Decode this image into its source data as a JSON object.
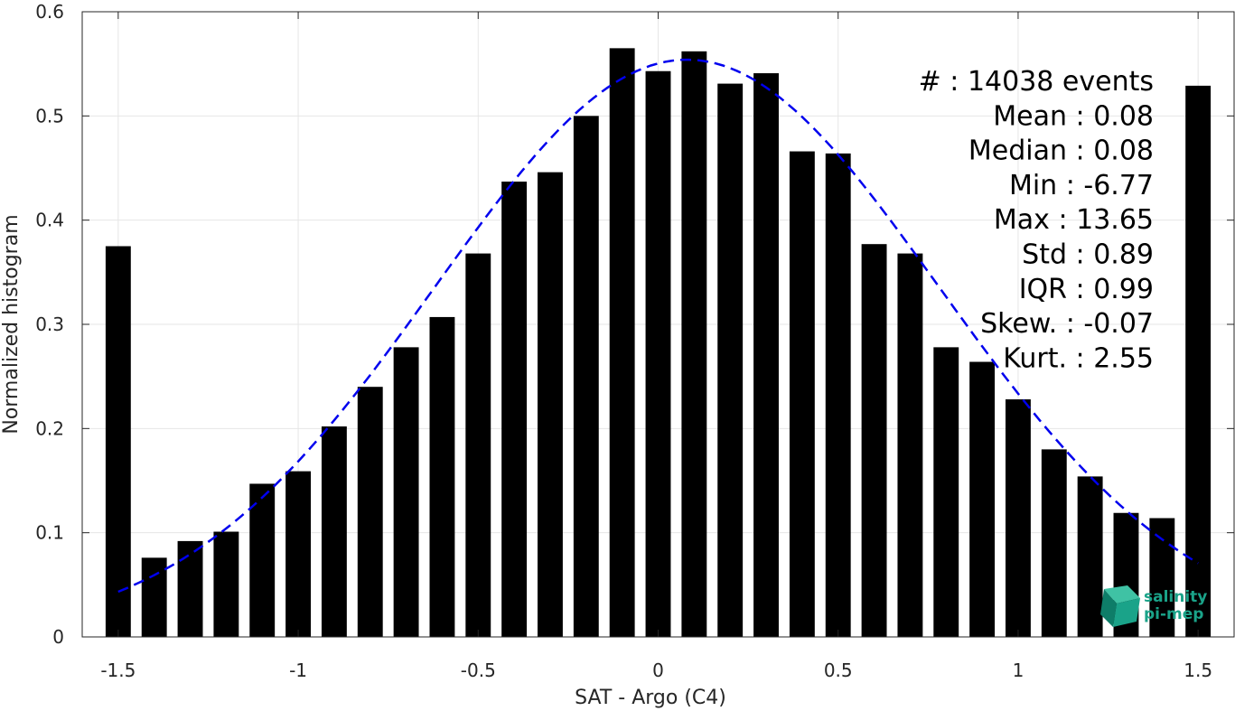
{
  "chart_data": {
    "type": "bar",
    "xlabel": "SAT - Argo (C4)",
    "ylabel": "Normalized histogram",
    "xlim": [
      -1.6,
      1.6
    ],
    "ylim": [
      0,
      0.6
    ],
    "grid": true,
    "xticks": [
      -1.5,
      -1,
      -0.5,
      0,
      0.5,
      1,
      1.5
    ],
    "xtick_labels": [
      "-1.5",
      "-1",
      "-0.5",
      "0",
      "0.5",
      "1",
      "1.5"
    ],
    "yticks": [
      0,
      0.1,
      0.2,
      0.3,
      0.4,
      0.5,
      0.6
    ],
    "ytick_labels": [
      "0",
      "0.1",
      "0.2",
      "0.3",
      "0.4",
      "0.5",
      "0.6"
    ],
    "bar_color": "#000000",
    "series": [
      {
        "x": [
          -1.5,
          -1.4,
          -1.3,
          -1.2,
          -1.1,
          -1.0,
          -0.9,
          -0.8,
          -0.7,
          -0.6,
          -0.5,
          -0.4,
          -0.3,
          -0.2,
          -0.1,
          0.0,
          0.1,
          0.2,
          0.3,
          0.4,
          0.5,
          0.6,
          0.7,
          0.8,
          0.9,
          1.0,
          1.1,
          1.2,
          1.3,
          1.4,
          1.5
        ],
        "values": [
          0.375,
          0.076,
          0.092,
          0.101,
          0.147,
          0.159,
          0.202,
          0.24,
          0.278,
          0.307,
          0.368,
          0.437,
          0.446,
          0.5,
          0.565,
          0.543,
          0.562,
          0.531,
          0.541,
          0.466,
          0.464,
          0.377,
          0.368,
          0.278,
          0.264,
          0.228,
          0.18,
          0.154,
          0.119,
          0.114,
          0.529
        ]
      }
    ],
    "fit_curve": {
      "type": "gaussian",
      "style": "dashed",
      "color": "#0000ee",
      "x_range": [
        -1.5,
        1.5
      ],
      "mean": 0.08,
      "std": 0.7,
      "peak": 0.554
    },
    "stats": [
      "#  : 14038 events",
      "Mean : 0.08",
      "Median : 0.08",
      "Min : -6.77",
      "Max : 13.65",
      "Std : 0.89",
      "IQR : 0.99",
      "Skew. : -0.07",
      "Kurt. : 2.55"
    ]
  },
  "logo": {
    "line1": "salinity",
    "line2": "pi-mep",
    "color": "#1aa389"
  }
}
